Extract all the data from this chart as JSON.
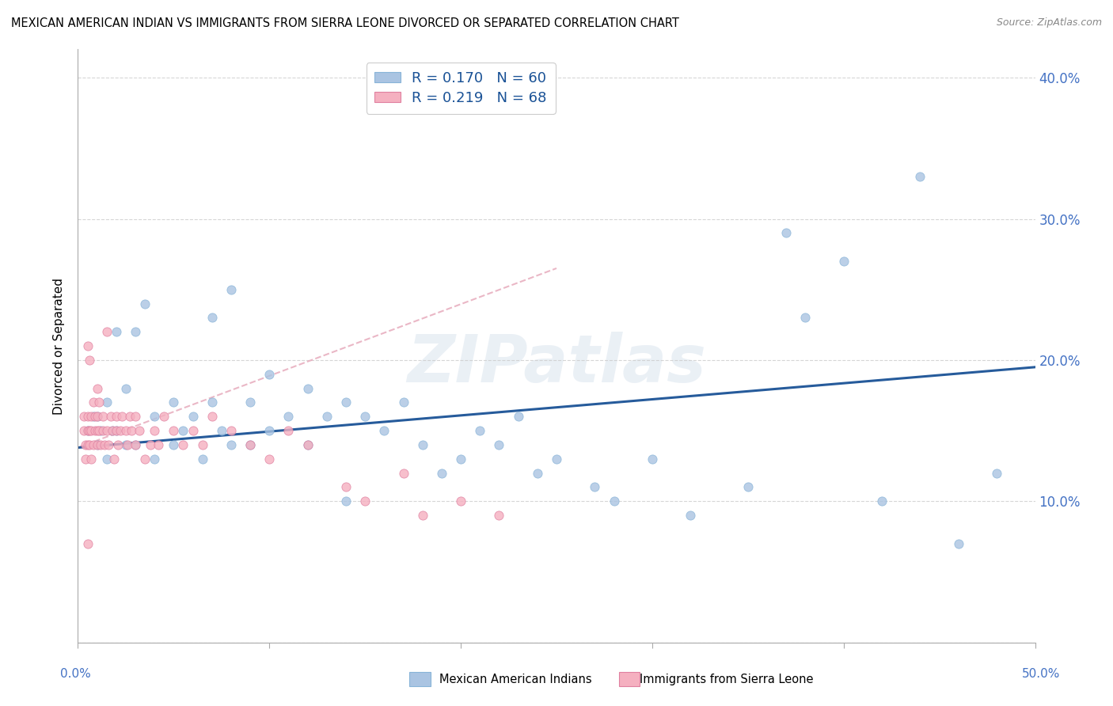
{
  "title": "MEXICAN AMERICAN INDIAN VS IMMIGRANTS FROM SIERRA LEONE DIVORCED OR SEPARATED CORRELATION CHART",
  "source": "Source: ZipAtlas.com",
  "ylabel": "Divorced or Separated",
  "watermark": "ZIPatlas",
  "blue_color": "#aac4e2",
  "pink_color": "#f5b0c0",
  "blue_line_color": "#1a5296",
  "pink_line_color": "#e8b0c0",
  "legend_label_blue": "Mexican American Indians",
  "legend_label_pink": "Immigrants from Sierra Leone",
  "xlim": [
    0.0,
    0.5
  ],
  "ylim": [
    0.0,
    0.42
  ],
  "blue_scatter_x": [
    0.005,
    0.008,
    0.01,
    0.01,
    0.012,
    0.015,
    0.015,
    0.018,
    0.02,
    0.02,
    0.025,
    0.025,
    0.03,
    0.03,
    0.035,
    0.04,
    0.04,
    0.05,
    0.05,
    0.055,
    0.06,
    0.065,
    0.07,
    0.07,
    0.075,
    0.08,
    0.08,
    0.09,
    0.09,
    0.1,
    0.1,
    0.11,
    0.12,
    0.12,
    0.13,
    0.14,
    0.14,
    0.15,
    0.16,
    0.17,
    0.18,
    0.19,
    0.2,
    0.21,
    0.22,
    0.23,
    0.24,
    0.25,
    0.27,
    0.28,
    0.3,
    0.32,
    0.35,
    0.37,
    0.38,
    0.4,
    0.42,
    0.44,
    0.46,
    0.48
  ],
  "blue_scatter_y": [
    0.15,
    0.16,
    0.14,
    0.16,
    0.15,
    0.17,
    0.13,
    0.15,
    0.22,
    0.15,
    0.18,
    0.14,
    0.22,
    0.14,
    0.24,
    0.16,
    0.13,
    0.17,
    0.14,
    0.15,
    0.16,
    0.13,
    0.17,
    0.23,
    0.15,
    0.25,
    0.14,
    0.17,
    0.14,
    0.19,
    0.15,
    0.16,
    0.18,
    0.14,
    0.16,
    0.17,
    0.1,
    0.16,
    0.15,
    0.17,
    0.14,
    0.12,
    0.13,
    0.15,
    0.14,
    0.16,
    0.12,
    0.13,
    0.11,
    0.1,
    0.13,
    0.09,
    0.11,
    0.29,
    0.23,
    0.27,
    0.1,
    0.33,
    0.07,
    0.12
  ],
  "pink_scatter_x": [
    0.003,
    0.003,
    0.004,
    0.004,
    0.005,
    0.005,
    0.005,
    0.005,
    0.006,
    0.006,
    0.006,
    0.007,
    0.007,
    0.007,
    0.008,
    0.008,
    0.009,
    0.009,
    0.01,
    0.01,
    0.01,
    0.01,
    0.011,
    0.011,
    0.012,
    0.013,
    0.013,
    0.014,
    0.015,
    0.015,
    0.016,
    0.017,
    0.018,
    0.019,
    0.02,
    0.02,
    0.021,
    0.022,
    0.023,
    0.025,
    0.026,
    0.027,
    0.028,
    0.03,
    0.03,
    0.032,
    0.035,
    0.038,
    0.04,
    0.042,
    0.045,
    0.05,
    0.055,
    0.06,
    0.065,
    0.07,
    0.08,
    0.09,
    0.1,
    0.11,
    0.12,
    0.14,
    0.15,
    0.17,
    0.18,
    0.2,
    0.22,
    0.005
  ],
  "pink_scatter_y": [
    0.15,
    0.16,
    0.14,
    0.13,
    0.15,
    0.16,
    0.14,
    0.21,
    0.15,
    0.14,
    0.2,
    0.15,
    0.16,
    0.13,
    0.17,
    0.14,
    0.16,
    0.15,
    0.18,
    0.15,
    0.14,
    0.16,
    0.15,
    0.17,
    0.14,
    0.15,
    0.16,
    0.14,
    0.22,
    0.15,
    0.14,
    0.16,
    0.15,
    0.13,
    0.16,
    0.15,
    0.14,
    0.15,
    0.16,
    0.15,
    0.14,
    0.16,
    0.15,
    0.14,
    0.16,
    0.15,
    0.13,
    0.14,
    0.15,
    0.14,
    0.16,
    0.15,
    0.14,
    0.15,
    0.14,
    0.16,
    0.15,
    0.14,
    0.13,
    0.15,
    0.14,
    0.11,
    0.1,
    0.12,
    0.09,
    0.1,
    0.09,
    0.07
  ],
  "blue_line_x": [
    0.0,
    0.5
  ],
  "blue_line_y": [
    0.138,
    0.195
  ],
  "pink_line_x": [
    0.0,
    0.25
  ],
  "pink_line_y": [
    0.138,
    0.265
  ],
  "right_ytick_labels": [
    "",
    "10.0%",
    "20.0%",
    "30.0%",
    "40.0%"
  ],
  "right_ytick_values": [
    0.0,
    0.1,
    0.2,
    0.3,
    0.4
  ]
}
